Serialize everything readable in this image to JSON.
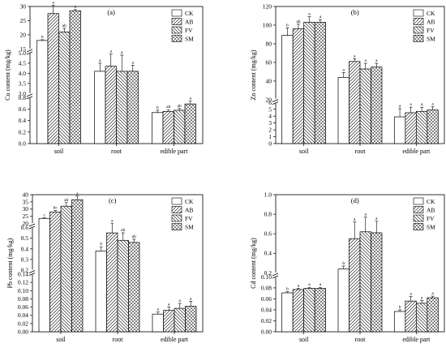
{
  "legend": [
    "CK",
    "AB",
    "FV",
    "SM"
  ],
  "chart_data": [
    {
      "type": "bar",
      "title": "(a)",
      "ylabel": "Cu content (mg/kg)",
      "categories": [
        "soil",
        "root",
        "edible part"
      ],
      "segments": [
        {
          "range": [
            0,
            0.8
          ],
          "ticks": [
            "0.0",
            "0.2",
            "0.4",
            "0.6",
            "0.8"
          ]
        },
        {
          "range": [
            3.0,
            5.0
          ],
          "ticks": [
            "3.0",
            "3.5",
            "4.0",
            "4.5",
            "5.0"
          ]
        },
        {
          "range": [
            15,
            30
          ],
          "ticks": [
            "15",
            "20",
            "25",
            "30"
          ]
        }
      ],
      "series": [
        {
          "name": "CK",
          "values": [
            18.0,
            4.1,
            0.54
          ],
          "errors": [
            0.3,
            0.4,
            0.04
          ],
          "letters": [
            "b",
            "a",
            "b"
          ]
        },
        {
          "name": "AB",
          "values": [
            27.5,
            4.35,
            0.56
          ],
          "errors": [
            3.0,
            0.6,
            0.03
          ],
          "letters": [
            "a",
            "a",
            "ab"
          ]
        },
        {
          "name": "FV",
          "values": [
            21.0,
            4.1,
            0.58
          ],
          "errors": [
            1.3,
            0.8,
            0.03
          ],
          "letters": [
            "ab",
            "a",
            "ab"
          ]
        },
        {
          "name": "SM",
          "values": [
            28.5,
            4.1,
            0.69
          ],
          "errors": [
            0.5,
            0.3,
            0.05
          ],
          "letters": [
            "a",
            "a",
            "a"
          ]
        }
      ]
    },
    {
      "type": "bar",
      "title": "(b)",
      "ylabel": "Zn content (mg/kg)",
      "categories": [
        "soil",
        "root",
        "edible part"
      ],
      "segments": [
        {
          "range": [
            0,
            6
          ],
          "ticks": [
            "0",
            "1",
            "2",
            "3",
            "4",
            "5",
            "6"
          ]
        },
        {
          "range": [
            20,
            120
          ],
          "ticks": [
            "20",
            "40",
            "60",
            "80",
            "100",
            "120"
          ]
        }
      ],
      "series": [
        {
          "name": "CK",
          "values": [
            89,
            44,
            3.9
          ],
          "errors": [
            8,
            5,
            1.2
          ],
          "letters": [
            "b",
            "a",
            "a"
          ]
        },
        {
          "name": "AB",
          "values": [
            96,
            61,
            4.5
          ],
          "errors": [
            5,
            3,
            0.8
          ],
          "letters": [
            "ab",
            "a",
            "a"
          ]
        },
        {
          "name": "FV",
          "values": [
            103,
            53,
            4.7
          ],
          "errors": [
            6,
            6,
            0.6
          ],
          "letters": [
            "a",
            "a",
            "a"
          ]
        },
        {
          "name": "SM",
          "values": [
            103,
            55,
            4.9
          ],
          "errors": [
            3,
            4,
            0.5
          ],
          "letters": [
            "a",
            "a",
            "a"
          ]
        }
      ]
    },
    {
      "type": "bar",
      "title": "(c)",
      "ylabel": "Pb content (mg/kg)",
      "categories": [
        "soil",
        "root",
        "edible part"
      ],
      "segments": [
        {
          "range": [
            0,
            0.14
          ],
          "ticks": [
            "0.00",
            "0.02",
            "0.04",
            "0.06",
            "0.08",
            "0.10",
            "0.12",
            "0.14"
          ]
        },
        {
          "range": [
            0.2,
            0.6
          ],
          "ticks": [
            "0.2",
            "0.3",
            "0.4",
            "0.5",
            "0.6"
          ]
        },
        {
          "range": [
            20,
            40
          ],
          "ticks": [
            "20",
            "25",
            "30",
            "35",
            "40"
          ]
        }
      ],
      "series": [
        {
          "name": "CK",
          "values": [
            23.5,
            0.38,
            0.043
          ],
          "errors": [
            0.5,
            0.04,
            0.005
          ],
          "letters": [
            "c",
            "b",
            "a"
          ]
        },
        {
          "name": "AB",
          "values": [
            28,
            0.55,
            0.052
          ],
          "errors": [
            1,
            0.05,
            0.008
          ],
          "letters": [
            "bc",
            "a",
            "a"
          ]
        },
        {
          "name": "FV",
          "values": [
            32,
            0.48,
            0.057
          ],
          "errors": [
            2.5,
            0.07,
            0.012
          ],
          "letters": [
            "ab",
            "ab",
            "a"
          ]
        },
        {
          "name": "SM",
          "values": [
            36.5,
            0.46,
            0.062
          ],
          "errors": [
            2.5,
            0.03,
            0.012
          ],
          "letters": [
            "a",
            "ab",
            "a"
          ]
        }
      ]
    },
    {
      "type": "bar",
      "title": "(d)",
      "ylabel": "Cd content (mg/kg)",
      "categories": [
        "soil",
        "root",
        "edible part"
      ],
      "segments": [
        {
          "range": [
            0,
            0.1
          ],
          "ticks": [
            "0.00",
            "0.02",
            "0.04",
            "0.06",
            "0.08",
            "0.10"
          ]
        },
        {
          "range": [
            0.2,
            1.0
          ],
          "ticks": [
            "0.2",
            "0.4",
            "0.6",
            "0.8",
            "1.0"
          ]
        }
      ],
      "series": [
        {
          "name": "CK",
          "values": [
            0.071,
            0.24,
            0.037
          ],
          "errors": [
            0.002,
            0.03,
            0.003
          ],
          "letters": [
            "b",
            "b",
            "b"
          ]
        },
        {
          "name": "AB",
          "values": [
            0.077,
            0.55,
            0.056
          ],
          "errors": [
            0.002,
            0.17,
            0.008
          ],
          "letters": [
            "a",
            "a",
            "a"
          ]
        },
        {
          "name": "FV",
          "values": [
            0.079,
            0.62,
            0.052
          ],
          "errors": [
            0.002,
            0.15,
            0.005
          ],
          "letters": [
            "a",
            "a",
            "a"
          ]
        },
        {
          "name": "SM",
          "values": [
            0.079,
            0.61,
            0.062
          ],
          "errors": [
            0.002,
            0.12,
            0.003
          ],
          "letters": [
            "a",
            "a",
            "a"
          ]
        }
      ]
    }
  ]
}
